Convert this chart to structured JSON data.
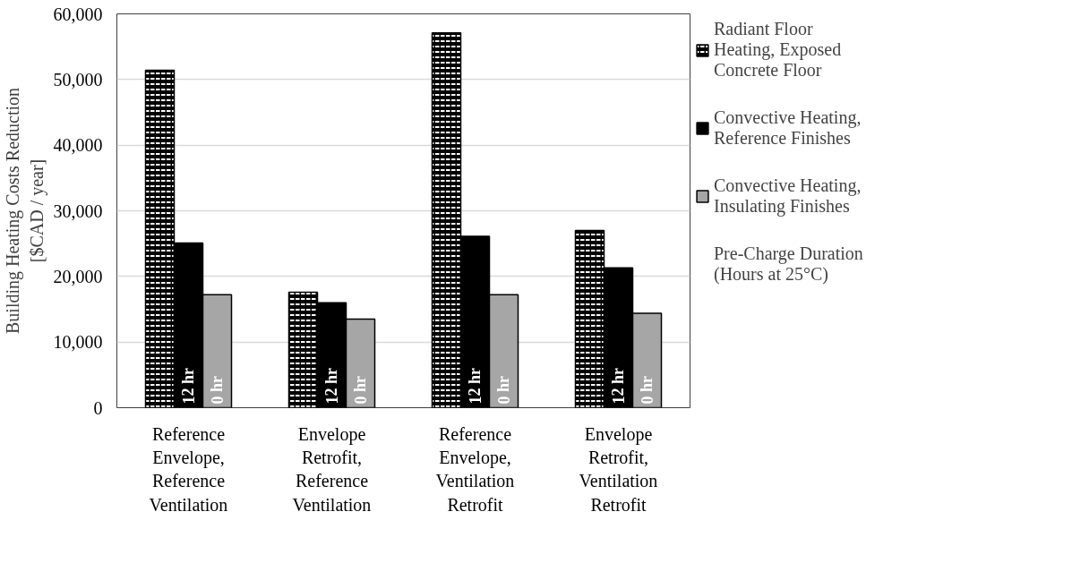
{
  "chart_data": {
    "type": "bar",
    "ylabel": "Building Heating Costs Reduction\n[$CAD / year]",
    "categories": [
      "Reference Envelope, Reference Ventilation",
      "Envelope Retrofit, Reference Ventilation",
      "Reference Envelope, Ventilation Retrofit",
      "Envelope Retrofit, Ventilation Retrofit"
    ],
    "series": [
      {
        "name": "Radiant Floor Heating, Exposed Concrete Floor",
        "color": "#000000",
        "values": [
          51400,
          17600,
          57100,
          27000
        ]
      },
      {
        "name": "Convective Heating, Reference Finishes",
        "color": "#000000",
        "values": [
          25100,
          16000,
          26100,
          21300
        ]
      },
      {
        "name": "Convective Heating, Insulating Finishes",
        "color": "#a6a6a6",
        "values": [
          17200,
          13500,
          17200,
          14400
        ]
      }
    ],
    "ylim": [
      0,
      60000
    ],
    "yticks": [
      {
        "value": 0,
        "label": "0"
      },
      {
        "value": 10000,
        "label": "10,000"
      },
      {
        "value": 20000,
        "label": "20,000"
      },
      {
        "value": 30000,
        "label": "30,000"
      },
      {
        "value": 40000,
        "label": "40,000"
      },
      {
        "value": 50000,
        "label": "50,000"
      },
      {
        "value": 60000,
        "label": "60,000"
      }
    ],
    "grid": "y",
    "legend": "right",
    "annotations": [
      {
        "text": "12 hr",
        "x": "Reference Envelope, Reference Ventilation",
        "y": 0
      },
      {
        "text": "0 hr",
        "x": "Reference Envelope, Reference Ventilation",
        "y": 0
      },
      {
        "text": "12 hr",
        "x": "Envelope Retrofit, Reference Ventilation",
        "y": 0
      },
      {
        "text": "0 hr",
        "x": "Envelope Retrofit, Reference Ventilation",
        "y": 0
      },
      {
        "text": "12 hr",
        "x": "Reference Envelope, Ventilation Retrofit",
        "y": 0
      },
      {
        "text": "0 hr",
        "x": "Reference Envelope, Ventilation Retrofit",
        "y": 0
      },
      {
        "text": "12 hr",
        "x": "Envelope Retrofit, Ventilation Retrofit",
        "y": 0
      },
      {
        "text": "0 hr",
        "x": "Envelope Retrofit, Ventilation Retrofit",
        "y": 0
      },
      "Pre-Charge Duration (Hours at 25°C)"
    ]
  }
}
